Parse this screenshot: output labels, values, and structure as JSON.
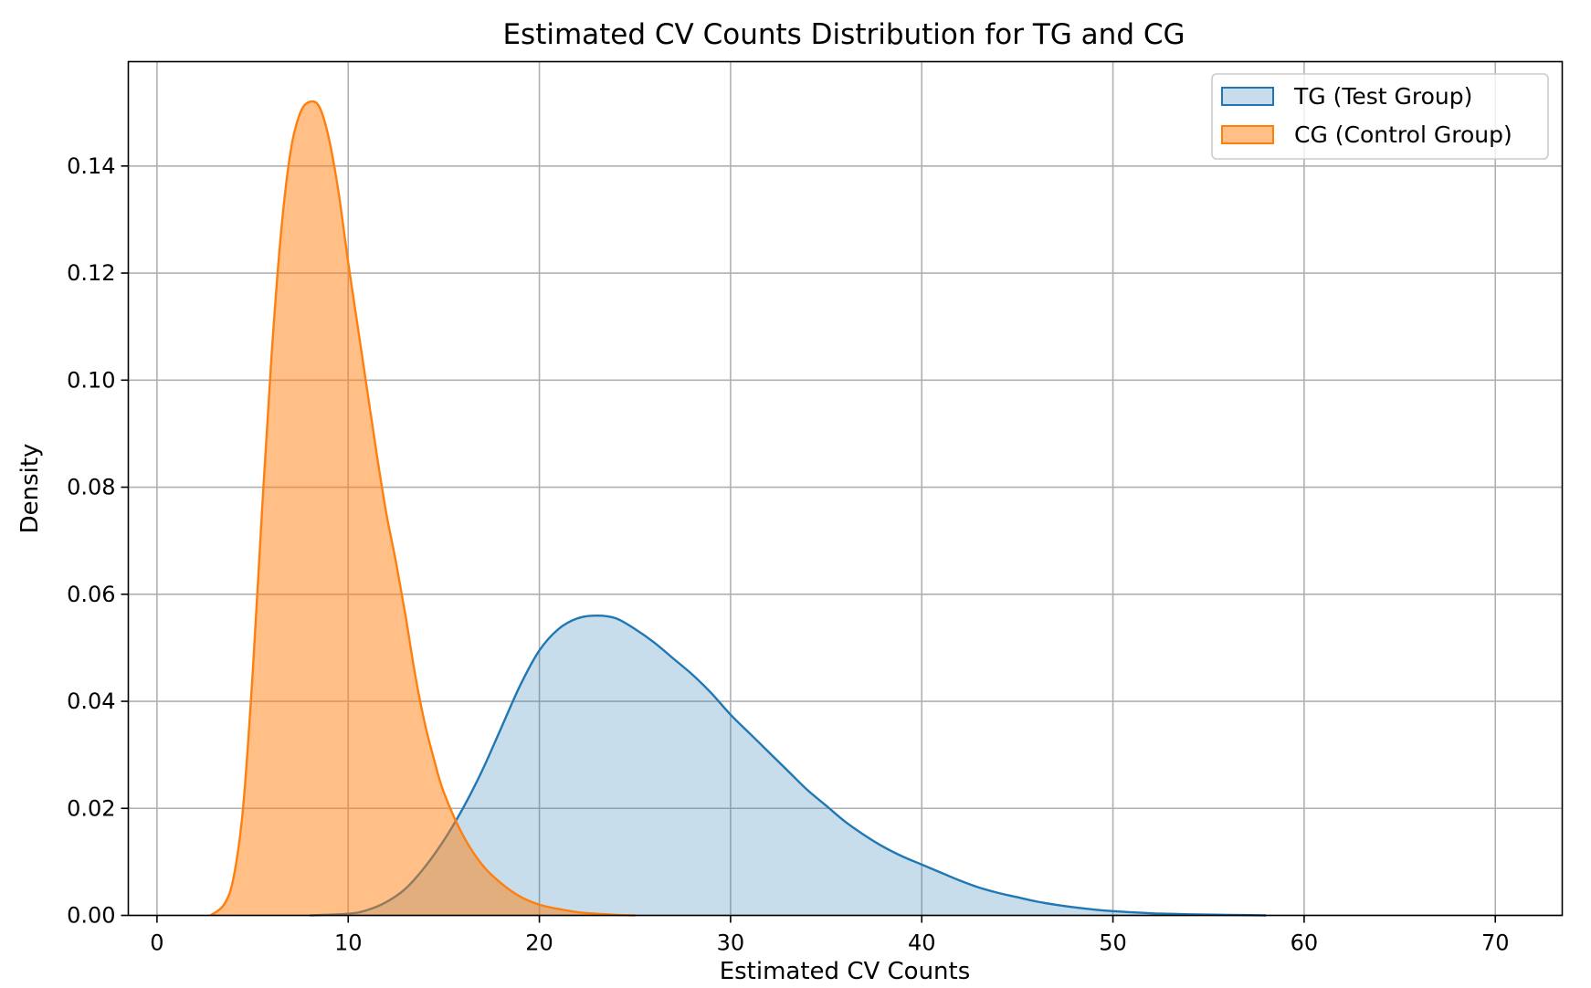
{
  "chart_data": {
    "type": "area",
    "title": "Estimated CV Counts Distribution for TG and CG",
    "xlabel": "Estimated CV Counts",
    "ylabel": "Density",
    "xlim": [
      -1.5,
      73.5
    ],
    "ylim": [
      0,
      0.1595
    ],
    "xticks": [
      0,
      10,
      20,
      30,
      40,
      50,
      60,
      70
    ],
    "xtick_labels": [
      "0",
      "10",
      "20",
      "30",
      "40",
      "50",
      "60",
      "70"
    ],
    "yticks": [
      0,
      0.02,
      0.04,
      0.06,
      0.08,
      0.1,
      0.12,
      0.14
    ],
    "ytick_labels": [
      "0.00",
      "0.02",
      "0.04",
      "0.06",
      "0.08",
      "0.10",
      "0.12",
      "0.14"
    ],
    "grid": true,
    "legend_position": "top-right",
    "series": [
      {
        "name": "TG (Test Group)",
        "color": "#1f77b4",
        "fill_opacity": 0.25,
        "x": [
          8,
          10,
          11,
          12,
          13,
          14,
          15,
          16,
          17,
          18,
          19,
          20,
          21,
          22,
          23,
          24,
          25,
          26,
          27,
          28,
          29,
          30,
          31,
          32,
          33,
          34,
          35,
          36,
          37,
          38,
          39,
          40,
          41,
          42,
          43,
          44,
          45,
          46,
          47,
          48,
          49,
          50,
          52,
          54,
          56,
          58
        ],
        "y": [
          0,
          0.0003,
          0.001,
          0.0025,
          0.005,
          0.009,
          0.014,
          0.02,
          0.027,
          0.035,
          0.043,
          0.0495,
          0.0535,
          0.0555,
          0.056,
          0.0555,
          0.0535,
          0.051,
          0.048,
          0.045,
          0.0415,
          0.0375,
          0.034,
          0.0305,
          0.027,
          0.0235,
          0.0205,
          0.0175,
          0.015,
          0.0128,
          0.011,
          0.0095,
          0.008,
          0.0065,
          0.0052,
          0.0042,
          0.0034,
          0.0026,
          0.002,
          0.0015,
          0.0011,
          0.0008,
          0.0004,
          0.0002,
          0.0001,
          0
        ]
      },
      {
        "name": "CG (Control Group)",
        "color": "#ff7f0e",
        "fill_opacity": 0.5,
        "x": [
          2.8,
          3.5,
          4,
          4.5,
          5,
          5.5,
          6,
          6.5,
          7,
          7.5,
          8,
          8.5,
          9,
          9.5,
          10,
          10.5,
          11,
          11.5,
          12,
          12.5,
          13,
          13.5,
          14,
          14.5,
          15,
          16,
          17,
          18,
          19,
          20,
          21,
          22,
          23,
          24,
          25
        ],
        "y": [
          0,
          0.002,
          0.007,
          0.02,
          0.045,
          0.076,
          0.105,
          0.128,
          0.143,
          0.15,
          0.152,
          0.151,
          0.145,
          0.135,
          0.122,
          0.11,
          0.098,
          0.086,
          0.075,
          0.066,
          0.056,
          0.045,
          0.036,
          0.029,
          0.023,
          0.015,
          0.0095,
          0.006,
          0.0035,
          0.002,
          0.0012,
          0.0006,
          0.0003,
          0.0001,
          0
        ]
      }
    ]
  }
}
